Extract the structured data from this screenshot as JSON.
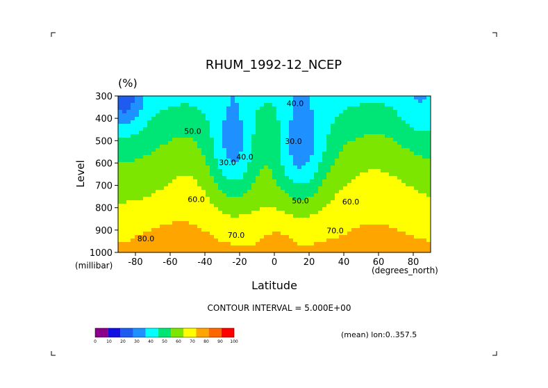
{
  "chart_data": {
    "type": "contour",
    "title": "RHUM_1992-12_NCEP",
    "units": "(%)",
    "xlabel": "Latitude",
    "ylabel": "Level",
    "x_unit": "(degrees_north)",
    "y_unit": "(millibar)",
    "xlim": [
      -90,
      90
    ],
    "ylim": [
      1000,
      300
    ],
    "x_ticks": [
      -80,
      -60,
      -40,
      -20,
      0,
      20,
      40,
      60,
      80
    ],
    "y_ticks": [
      300,
      400,
      500,
      600,
      700,
      800,
      900,
      1000
    ],
    "contour_interval_text": "CONTOUR INTERVAL = 5.000E+00",
    "contour_interval": 5,
    "contour_labels": [
      {
        "text": "40.0",
        "lat": 12,
        "lev": 345
      },
      {
        "text": "50.0",
        "lat": -47,
        "lev": 470
      },
      {
        "text": "30.0",
        "lat": 11,
        "lev": 515
      },
      {
        "text": "40.0",
        "lat": -17,
        "lev": 585
      },
      {
        "text": "30.0",
        "lat": -27,
        "lev": 610
      },
      {
        "text": "60.0",
        "lat": -45,
        "lev": 775
      },
      {
        "text": "50.0",
        "lat": 15,
        "lev": 780
      },
      {
        "text": "60.0",
        "lat": 44,
        "lev": 785
      },
      {
        "text": "70.0",
        "lat": 35,
        "lev": 915
      },
      {
        "text": "70.0",
        "lat": -22,
        "lev": 935
      },
      {
        "text": "80.0",
        "lat": -74,
        "lev": 950
      }
    ],
    "colorbar": {
      "ticks": [
        "0",
        "10",
        "20",
        "30",
        "40",
        "50",
        "60",
        "70",
        "80",
        "90",
        "100"
      ],
      "colors": [
        "#8b008b",
        "#1010e0",
        "#1e5cf0",
        "#1e90ff",
        "#00ffff",
        "#00e676",
        "#7ce600",
        "#ffff00",
        "#ffa500",
        "#ff6600",
        "#ff0000"
      ]
    },
    "grid": false,
    "legend": "colorbar bottom-left"
  },
  "footer": {
    "mean_text": "(mean) lon:0..357.5"
  }
}
